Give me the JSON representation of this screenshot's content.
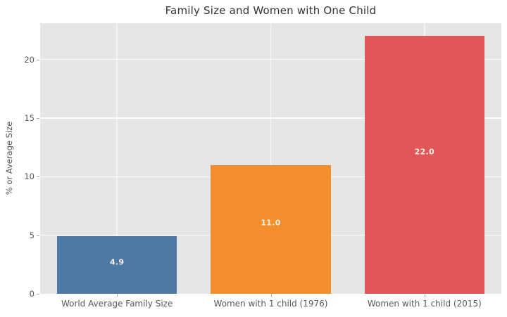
{
  "chart_data": {
    "type": "bar",
    "title": "Family Size and Women with One Child",
    "xlabel": "",
    "ylabel": "% or Average Size",
    "categories": [
      "World Average Family Size",
      "Women with 1 child (1976)",
      "Women with 1 child (2015)"
    ],
    "values": [
      4.9,
      11.0,
      22.0
    ],
    "value_labels": [
      "4.9",
      "11.0",
      "22.0"
    ],
    "bar_colors": [
      "#4E79A7",
      "#F28E2B",
      "#E15759"
    ],
    "yticks": [
      0,
      5,
      10,
      15,
      20
    ],
    "ylim": [
      0,
      23.1
    ],
    "grid": "on",
    "legend": "none",
    "plot_background": "#e5e6e6",
    "grid_color": "#ffffff",
    "bar_label_color": "#f5efe6",
    "tick_label_color": "#595959",
    "title_color": "#333333"
  }
}
